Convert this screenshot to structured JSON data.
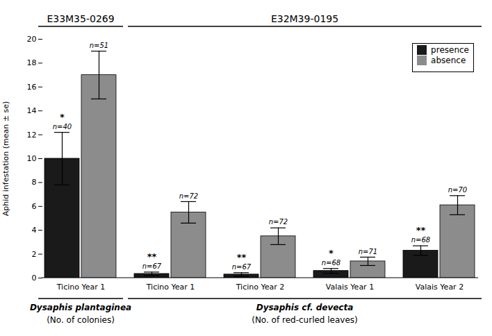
{
  "chart_data": {
    "type": "bar",
    "categories": [
      "Ticino Year 1",
      "Ticino Year 1",
      "Ticino Year 2",
      "Valais Year 1",
      "Valais Year 2"
    ],
    "series": [
      {
        "name": "presence",
        "color": "#1a1a1a",
        "values": [
          10.0,
          0.35,
          0.3,
          0.6,
          2.3
        ],
        "errors": [
          2.2,
          0.15,
          0.15,
          0.2,
          0.4
        ],
        "n_labels": [
          "n=40",
          "n=67",
          "n=67",
          "n=68",
          "n=68"
        ],
        "significance": [
          "*",
          "**",
          "**",
          "*",
          "**"
        ]
      },
      {
        "name": "absence",
        "color": "#8c8c8c",
        "values": [
          17.0,
          5.5,
          3.5,
          1.4,
          6.1
        ],
        "errors": [
          2.0,
          0.9,
          0.7,
          0.35,
          0.8
        ],
        "n_labels": [
          "n=51",
          "n=72",
          "n=72",
          "n=71",
          "n=70"
        ]
      }
    ],
    "ylabel": "Aphid infestation (mean ± se)",
    "ylim": [
      0,
      20
    ],
    "yticks": [
      0,
      2,
      4,
      6,
      8,
      10,
      12,
      14,
      16,
      18,
      20
    ],
    "grid": false,
    "legend": "upper right",
    "category_sections": [
      "E33M35-0269",
      "E32M39-0195",
      "E32M39-0195",
      "E32M39-0195",
      "E32M39-0195"
    ],
    "sections": [
      {
        "label": "E33M35-0269",
        "taxon": "Dysaphis plantaginea",
        "measure": "(No. of colonies)"
      },
      {
        "label": "E32M39-0195",
        "taxon": "Dysaphis cf. devecta",
        "measure": "(No. of red-curled leaves)"
      }
    ]
  }
}
